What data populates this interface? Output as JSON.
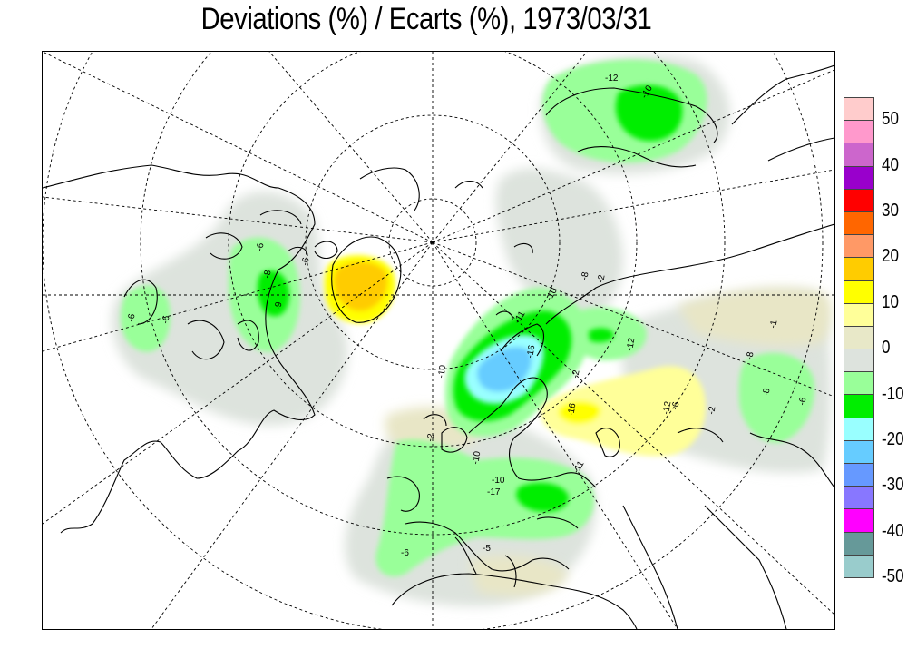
{
  "title": "Deviations (%) / Ecarts (%), 1973/03/31",
  "legend": {
    "colors": [
      "#ffcccc",
      "#ff99cc",
      "#cc66cc",
      "#9900cc",
      "#ff0000",
      "#ff6600",
      "#ff9966",
      "#ffcc00",
      "#ffff00",
      "#ffff99",
      "#e8e8c8",
      "#dde3dd",
      "#99ff99",
      "#00ee00",
      "#99ffff",
      "#66ccff",
      "#6699ff",
      "#8877ff",
      "#ff00ff",
      "#669999",
      "#99cccc"
    ],
    "labels": [
      "50",
      "40",
      "30",
      "20",
      "10",
      "0",
      "-10",
      "-20",
      "-30",
      "-40",
      "-50"
    ]
  },
  "contour_labels": [
    "-6",
    "-6",
    "-8",
    "-9",
    "-10",
    "-11",
    "-12",
    "-10",
    "-8",
    "-16",
    "-2",
    "-2",
    "-2",
    "-12",
    "-8",
    "-16",
    "-6",
    "-12",
    "-10",
    "-10",
    "-11",
    "-17",
    "-6",
    "-5",
    "-10",
    "-1",
    "-8",
    "-6",
    "-6",
    "-6",
    "-2"
  ]
}
